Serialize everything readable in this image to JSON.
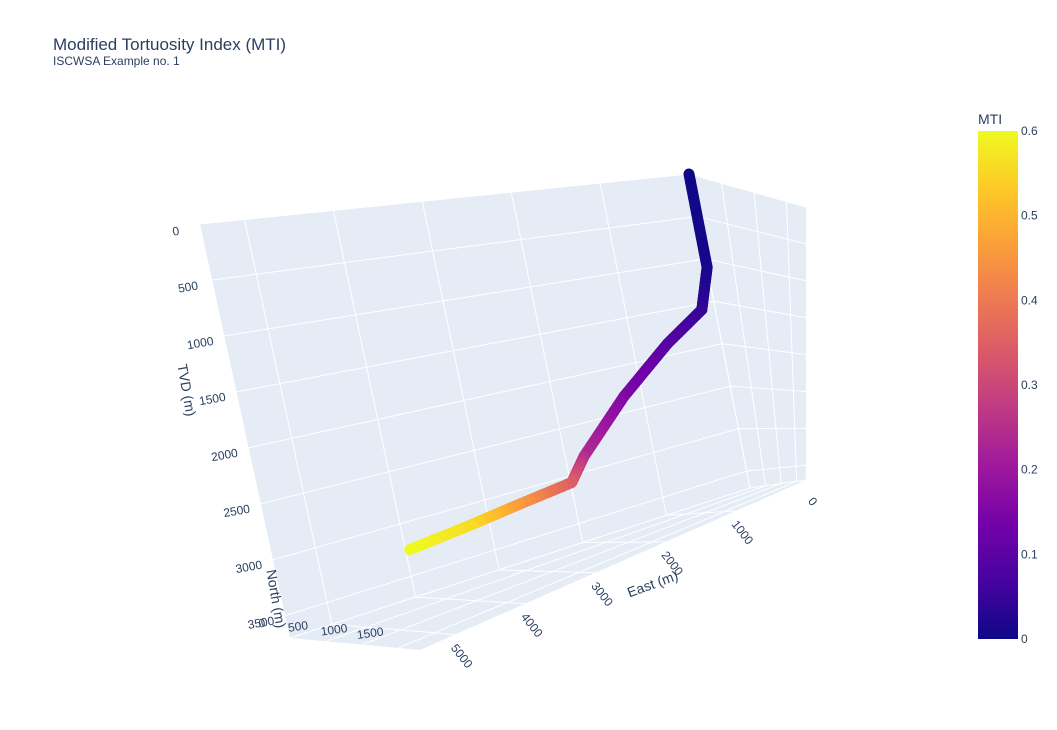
{
  "chart_data": {
    "type": "line3d",
    "title": "Modified Tortuosity Index (MTI)",
    "subtitle": "ISCWSA Example no. 1",
    "axes": {
      "x": {
        "label": "East (m)",
        "ticks": [
          0,
          1000,
          2000,
          3000,
          4000,
          5000
        ],
        "range": [
          0,
          5500
        ]
      },
      "y": {
        "label": "North (m)",
        "ticks": [
          0,
          500,
          1000,
          1500
        ],
        "range": [
          0,
          1800
        ]
      },
      "z": {
        "label": "TVD (m)",
        "ticks": [
          0,
          500,
          1000,
          1500,
          2000,
          2500,
          3000,
          3500
        ],
        "range": [
          0,
          3700
        ],
        "reversed": true
      }
    },
    "colorbar": {
      "title": "MTI",
      "ticks": [
        0,
        0.1,
        0.2,
        0.3,
        0.4,
        0.5,
        0.6
      ],
      "range": [
        0,
        0.6
      ],
      "colorscale": [
        "#0d0887",
        "#46039f",
        "#7201a8",
        "#9c179e",
        "#bd3786",
        "#d8576b",
        "#ed7953",
        "#fb9f3a",
        "#fdca26",
        "#f0f921"
      ]
    },
    "series": [
      {
        "points": [
          {
            "east": 0,
            "north": 0,
            "tvd": 0,
            "mti": 0.0
          },
          {
            "east": 0,
            "north": 0,
            "tvd": 1100,
            "mti": 0.01
          },
          {
            "east": 200,
            "north": 90,
            "tvd": 1550,
            "mti": 0.04
          },
          {
            "east": 800,
            "north": 350,
            "tvd": 1800,
            "mti": 0.09
          },
          {
            "east": 1600,
            "north": 700,
            "tvd": 2200,
            "mti": 0.15
          },
          {
            "east": 2400,
            "north": 1050,
            "tvd": 2650,
            "mti": 0.24
          },
          {
            "east": 2700,
            "north": 1200,
            "tvd": 2850,
            "mti": 0.34
          },
          {
            "east": 3600,
            "north": 1450,
            "tvd": 2850,
            "mti": 0.46
          },
          {
            "east": 4400,
            "north": 1650,
            "tvd": 2850,
            "mti": 0.56
          },
          {
            "east": 5300,
            "north": 1800,
            "tvd": 2850,
            "mti": 0.6
          }
        ]
      }
    ]
  }
}
